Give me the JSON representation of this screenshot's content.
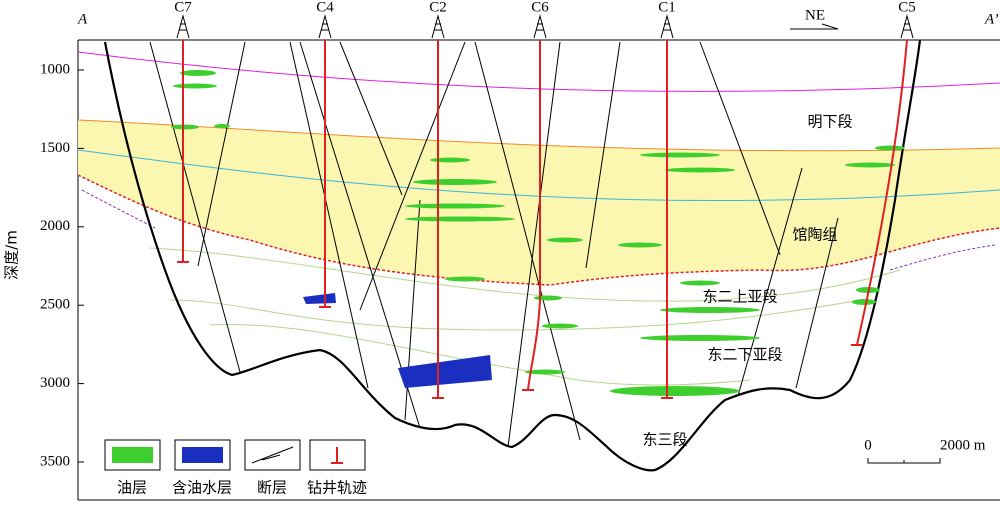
{
  "section": {
    "start": "A",
    "end": "A’",
    "direction": "NE"
  },
  "wells": [
    "C7",
    "C4",
    "C2",
    "C6",
    "C1",
    "C5"
  ],
  "depth_axis": {
    "label": "深度/m",
    "ticks": [
      1000,
      1500,
      2000,
      2500,
      3000,
      3500
    ]
  },
  "units": [
    "明下段",
    "馆陶组",
    "东二上亚段",
    "东二下亚段",
    "东三段"
  ],
  "legend": [
    "油层",
    "含油水层",
    "断层",
    "钻井轨迹"
  ],
  "scale_bar": {
    "start": "0",
    "end": "2000 m"
  }
}
